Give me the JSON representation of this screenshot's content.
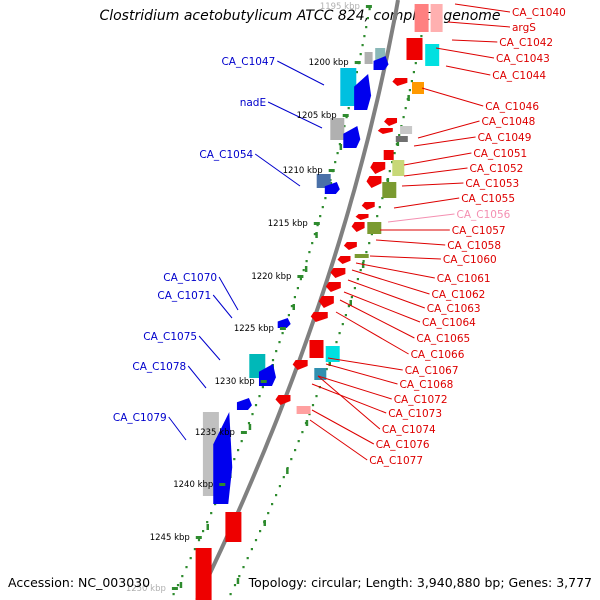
{
  "title": "Clostridium acetobutylicum ATCC 824, complete genome",
  "footer": {
    "accession": "Accession: NC_003030",
    "topology": "Topology: circular; Length: 3,940,880 bp; Genes: 3,777"
  },
  "kbp_ticks": [
    "1195 kbp",
    "1200 kbp",
    "1205 kbp",
    "1210 kbp",
    "1215 kbp",
    "1220 kbp",
    "1225 kbp",
    "1230 kbp",
    "1235 kbp",
    "1240 kbp",
    "1245 kbp",
    "1250 kbp"
  ],
  "left_labels": [
    "CA_C1047",
    "nadE",
    "CA_C1054",
    "CA_C1070",
    "CA_C1071",
    "CA_C1075",
    "CA_C1078",
    "CA_C1079"
  ],
  "right_labels": [
    "CA_C1040",
    "argS",
    "CA_C1042",
    "CA_C1043",
    "CA_C1044",
    "CA_C1046",
    "CA_C1048",
    "CA_C1049",
    "CA_C1051",
    "CA_C1052",
    "CA_C1053",
    "CA_C1055",
    "CA_C1056",
    "CA_C1057",
    "CA_C1058",
    "CA_C1060",
    "CA_C1061",
    "CA_C1062",
    "CA_C1063",
    "CA_C1064",
    "CA_C1065",
    "CA_C1066",
    "CA_C1067",
    "CA_C1068",
    "CA_C1072",
    "CA_C1073",
    "CA_C1074",
    "CA_C1076",
    "CA_C1077"
  ],
  "colors": {
    "left_label": "#0000cc",
    "right_label": "#dd0000",
    "faded_label": "#f48fb1",
    "backbone": "#808080",
    "dots": "#2e8b2e",
    "forward_gene": "#0000ee",
    "reverse_gene": "#ee0000"
  }
}
